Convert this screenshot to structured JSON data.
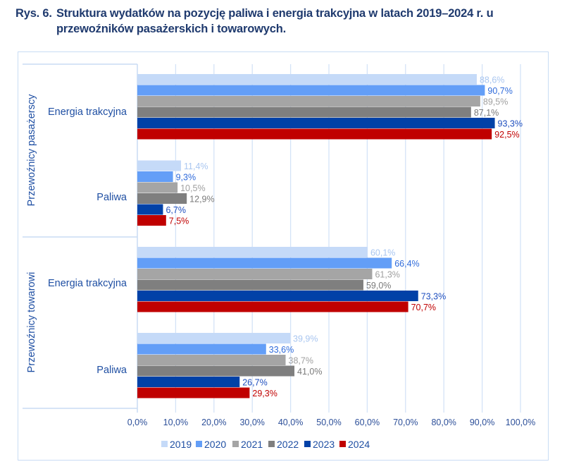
{
  "title": {
    "number": "Rys. 6.",
    "line1": "Struktura wydatków na pozycję paliwa i energia trakcyjna w latach 2019–2024 r. u",
    "line2": "przewoźników pasażerskich i towarowych."
  },
  "chart_data": {
    "type": "bar",
    "orientation": "horizontal",
    "title": "Struktura wydatków na pozycję paliwa i energia trakcyjna w latach 2019–2024 r. u przewoźników pasażerskich i towarowych.",
    "xlabel": "",
    "ylabel": "",
    "xlim": [
      0,
      100
    ],
    "x_ticks": [
      "0,0%",
      "10,0%",
      "20,0%",
      "30,0%",
      "40,0%",
      "50,0%",
      "60,0%",
      "70,0%",
      "80,0%",
      "90,0%",
      "100,0%"
    ],
    "grid": true,
    "legend_position": "bottom",
    "groups": [
      {
        "label": "Przewoźnicy pasażerscy",
        "categories": [
          "Energia trakcyjna",
          "Paliwa"
        ]
      },
      {
        "label": "Przewoźnicy towarowi",
        "categories": [
          "Energia trakcyjna",
          "Paliwa"
        ]
      }
    ],
    "categories": [
      "Przewoźnicy pasażerscy – Energia trakcyjna",
      "Przewoźnicy pasażerscy – Paliwa",
      "Przewoźnicy towarowi – Energia trakcyjna",
      "Przewoźnicy towarowi – Paliwa"
    ],
    "series": [
      {
        "name": "2019",
        "color": "#C5DAF8",
        "label_color": "#A9C6F0",
        "values": [
          88.6,
          11.4,
          60.1,
          39.9
        ],
        "labels": [
          "88,6%",
          "11,4%",
          "60,1%",
          "39,9%"
        ]
      },
      {
        "name": "2020",
        "color": "#639EF7",
        "label_color": "#2F6BDB",
        "values": [
          90.7,
          9.3,
          66.4,
          33.6
        ],
        "labels": [
          "90,7%",
          "9,3%",
          "66,4%",
          "33,6%"
        ]
      },
      {
        "name": "2021",
        "color": "#A5A5A5",
        "label_color": "#A0A0A0",
        "values": [
          89.5,
          10.5,
          61.3,
          38.7
        ],
        "labels": [
          "89,5%",
          "10,5%",
          "61,3%",
          "38,7%"
        ]
      },
      {
        "name": "2022",
        "color": "#7F7F7F",
        "label_color": "#7A7A7A",
        "values": [
          87.1,
          12.9,
          59.0,
          41.0
        ],
        "labels": [
          "87,1%",
          "12,9%",
          "59,0%",
          "41,0%"
        ]
      },
      {
        "name": "2023",
        "color": "#0141A7",
        "label_color": "#1F4FBF",
        "values": [
          93.3,
          6.7,
          73.3,
          26.7
        ],
        "labels": [
          "93,3%",
          "6,7%",
          "73,3%",
          "26,7%"
        ]
      },
      {
        "name": "2024",
        "color": "#C00000",
        "label_color": "#C00000",
        "values": [
          92.5,
          7.5,
          70.7,
          29.3
        ],
        "labels": [
          "92,5%",
          "7,5%",
          "70,7%",
          "29,3%"
        ]
      }
    ]
  }
}
